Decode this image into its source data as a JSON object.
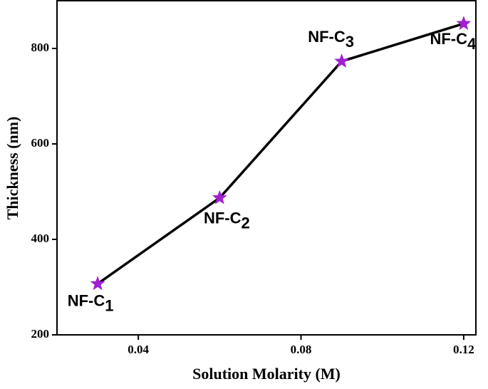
{
  "chart_data": {
    "type": "line",
    "x_label": "Solution Molarity (M)",
    "y_label": "Thickness (nm)",
    "x": [
      0.03,
      0.06,
      0.09,
      0.12
    ],
    "series": [
      {
        "color": "#a020d0",
        "values": [
          307,
          487,
          773,
          852
        ]
      }
    ],
    "annotations": [
      {
        "text": "NF-C",
        "subscript": "1"
      },
      {
        "text": "NF-C",
        "subscript": "2"
      },
      {
        "text": "NF-C",
        "subscript": "3"
      },
      {
        "text": "NF-C",
        "subscript": "4"
      }
    ],
    "xlim": [
      0.02,
      0.123
    ],
    "ylim": [
      200,
      900
    ],
    "xticks": [
      0.04,
      0.08,
      0.12
    ],
    "yticks": [
      200,
      400,
      600,
      800
    ]
  }
}
